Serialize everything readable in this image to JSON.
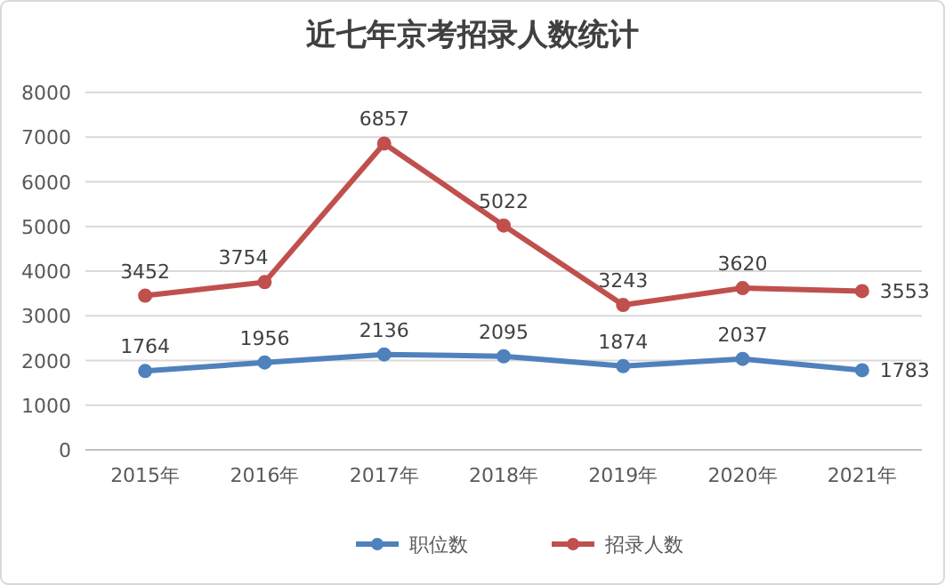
{
  "chart_data": {
    "type": "line",
    "title": "近七年京考招录人数统计",
    "categories": [
      "2015年",
      "2016年",
      "2017年",
      "2018年",
      "2019年",
      "2020年",
      "2021年"
    ],
    "series": [
      {
        "name": "职位数",
        "color": "#4f81bd",
        "values": [
          1764,
          1956,
          2136,
          2095,
          1874,
          2037,
          1783
        ]
      },
      {
        "name": "招录人数",
        "color": "#c0504d",
        "values": [
          3452,
          3754,
          6857,
          5022,
          3243,
          3620,
          3553
        ]
      }
    ],
    "ylim": [
      0,
      8000
    ],
    "yticks": [
      0,
      1000,
      2000,
      3000,
      4000,
      5000,
      6000,
      7000,
      8000
    ],
    "grid": "y",
    "legend": "bottom",
    "marker": "circle",
    "data_labels": true
  }
}
